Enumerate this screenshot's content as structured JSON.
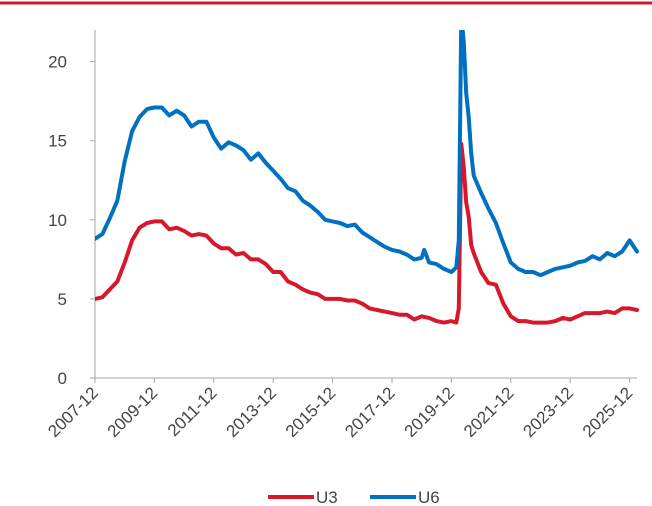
{
  "colors": {
    "top_rule": "#d7182a",
    "axis": "#a6a6a6",
    "text": "#444444"
  },
  "chart_data": {
    "type": "line",
    "title": "",
    "xlabel": "",
    "ylabel": "",
    "x_range": [
      "2007-12",
      "2026-03"
    ],
    "ylim": [
      0,
      22
    ],
    "y_ticks": [
      0,
      5,
      10,
      15,
      20
    ],
    "x_ticks": [
      "2007-12",
      "2009-12",
      "2011-12",
      "2013-12",
      "2015-12",
      "2017-12",
      "2019-12",
      "2021-12",
      "2023-12",
      "2025-12"
    ],
    "grid": false,
    "legend": "bottom",
    "series": [
      {
        "name": "U3",
        "color": "#d7182a",
        "points": [
          [
            "2007-12",
            5.0
          ],
          [
            "2008-03",
            5.1
          ],
          [
            "2008-06",
            5.6
          ],
          [
            "2008-09",
            6.1
          ],
          [
            "2008-12",
            7.3
          ],
          [
            "2009-03",
            8.7
          ],
          [
            "2009-06",
            9.5
          ],
          [
            "2009-09",
            9.8
          ],
          [
            "2009-12",
            9.9
          ],
          [
            "2010-03",
            9.9
          ],
          [
            "2010-06",
            9.4
          ],
          [
            "2010-09",
            9.5
          ],
          [
            "2010-12",
            9.3
          ],
          [
            "2011-03",
            9.0
          ],
          [
            "2011-06",
            9.1
          ],
          [
            "2011-09",
            9.0
          ],
          [
            "2011-12",
            8.5
          ],
          [
            "2012-03",
            8.2
          ],
          [
            "2012-06",
            8.2
          ],
          [
            "2012-09",
            7.8
          ],
          [
            "2012-12",
            7.9
          ],
          [
            "2013-03",
            7.5
          ],
          [
            "2013-06",
            7.5
          ],
          [
            "2013-09",
            7.2
          ],
          [
            "2013-12",
            6.7
          ],
          [
            "2014-03",
            6.7
          ],
          [
            "2014-06",
            6.1
          ],
          [
            "2014-09",
            5.9
          ],
          [
            "2014-12",
            5.6
          ],
          [
            "2015-03",
            5.4
          ],
          [
            "2015-06",
            5.3
          ],
          [
            "2015-09",
            5.0
          ],
          [
            "2015-12",
            5.0
          ],
          [
            "2016-03",
            5.0
          ],
          [
            "2016-06",
            4.9
          ],
          [
            "2016-09",
            4.9
          ],
          [
            "2016-12",
            4.7
          ],
          [
            "2017-03",
            4.4
          ],
          [
            "2017-06",
            4.3
          ],
          [
            "2017-09",
            4.2
          ],
          [
            "2017-12",
            4.1
          ],
          [
            "2018-03",
            4.0
          ],
          [
            "2018-06",
            4.0
          ],
          [
            "2018-09",
            3.7
          ],
          [
            "2018-12",
            3.9
          ],
          [
            "2019-03",
            3.8
          ],
          [
            "2019-06",
            3.6
          ],
          [
            "2019-09",
            3.5
          ],
          [
            "2019-12",
            3.6
          ],
          [
            "2020-02",
            3.5
          ],
          [
            "2020-03",
            4.4
          ],
          [
            "2020-04",
            14.8
          ],
          [
            "2020-05",
            13.3
          ],
          [
            "2020-06",
            11.1
          ],
          [
            "2020-07",
            10.2
          ],
          [
            "2020-08",
            8.4
          ],
          [
            "2020-09",
            7.9
          ],
          [
            "2020-12",
            6.7
          ],
          [
            "2021-03",
            6.0
          ],
          [
            "2021-06",
            5.9
          ],
          [
            "2021-09",
            4.7
          ],
          [
            "2021-12",
            3.9
          ],
          [
            "2022-03",
            3.6
          ],
          [
            "2022-06",
            3.6
          ],
          [
            "2022-09",
            3.5
          ],
          [
            "2022-12",
            3.5
          ],
          [
            "2023-03",
            3.5
          ],
          [
            "2023-06",
            3.6
          ],
          [
            "2023-09",
            3.8
          ],
          [
            "2023-12",
            3.7
          ],
          [
            "2024-03",
            3.9
          ],
          [
            "2024-06",
            4.1
          ],
          [
            "2024-09",
            4.1
          ],
          [
            "2024-12",
            4.1
          ],
          [
            "2025-03",
            4.2
          ],
          [
            "2025-06",
            4.1
          ],
          [
            "2025-09",
            4.4
          ],
          [
            "2025-12",
            4.4
          ],
          [
            "2026-03",
            4.3
          ]
        ]
      },
      {
        "name": "U6",
        "color": "#0070c0",
        "points": [
          [
            "2007-12",
            8.8
          ],
          [
            "2008-03",
            9.1
          ],
          [
            "2008-06",
            10.1
          ],
          [
            "2008-09",
            11.2
          ],
          [
            "2008-12",
            13.7
          ],
          [
            "2009-03",
            15.6
          ],
          [
            "2009-06",
            16.5
          ],
          [
            "2009-09",
            17.0
          ],
          [
            "2009-12",
            17.1
          ],
          [
            "2010-03",
            17.1
          ],
          [
            "2010-06",
            16.6
          ],
          [
            "2010-09",
            16.9
          ],
          [
            "2010-12",
            16.6
          ],
          [
            "2011-03",
            15.9
          ],
          [
            "2011-06",
            16.2
          ],
          [
            "2011-09",
            16.2
          ],
          [
            "2011-12",
            15.2
          ],
          [
            "2012-03",
            14.5
          ],
          [
            "2012-06",
            14.9
          ],
          [
            "2012-09",
            14.7
          ],
          [
            "2012-12",
            14.4
          ],
          [
            "2013-03",
            13.8
          ],
          [
            "2013-06",
            14.2
          ],
          [
            "2013-09",
            13.6
          ],
          [
            "2013-12",
            13.1
          ],
          [
            "2014-03",
            12.6
          ],
          [
            "2014-06",
            12.0
          ],
          [
            "2014-09",
            11.8
          ],
          [
            "2014-12",
            11.2
          ],
          [
            "2015-03",
            10.9
          ],
          [
            "2015-06",
            10.5
          ],
          [
            "2015-09",
            10.0
          ],
          [
            "2015-12",
            9.9
          ],
          [
            "2016-03",
            9.8
          ],
          [
            "2016-06",
            9.6
          ],
          [
            "2016-09",
            9.7
          ],
          [
            "2016-12",
            9.2
          ],
          [
            "2017-03",
            8.9
          ],
          [
            "2017-06",
            8.6
          ],
          [
            "2017-09",
            8.3
          ],
          [
            "2017-12",
            8.1
          ],
          [
            "2018-03",
            8.0
          ],
          [
            "2018-06",
            7.8
          ],
          [
            "2018-09",
            7.5
          ],
          [
            "2018-12",
            7.6
          ],
          [
            "2019-01",
            8.1
          ],
          [
            "2019-03",
            7.3
          ],
          [
            "2019-06",
            7.2
          ],
          [
            "2019-09",
            6.9
          ],
          [
            "2019-12",
            6.7
          ],
          [
            "2020-02",
            7.0
          ],
          [
            "2020-03",
            8.7
          ],
          [
            "2020-04",
            22.9
          ],
          [
            "2020-05",
            21.2
          ],
          [
            "2020-06",
            18.0
          ],
          [
            "2020-07",
            16.5
          ],
          [
            "2020-08",
            14.2
          ],
          [
            "2020-09",
            12.8
          ],
          [
            "2020-12",
            11.7
          ],
          [
            "2021-03",
            10.7
          ],
          [
            "2021-06",
            9.8
          ],
          [
            "2021-09",
            8.5
          ],
          [
            "2021-12",
            7.3
          ],
          [
            "2022-03",
            6.9
          ],
          [
            "2022-06",
            6.7
          ],
          [
            "2022-09",
            6.7
          ],
          [
            "2022-12",
            6.5
          ],
          [
            "2023-03",
            6.7
          ],
          [
            "2023-06",
            6.9
          ],
          [
            "2023-09",
            7.0
          ],
          [
            "2023-12",
            7.1
          ],
          [
            "2024-03",
            7.3
          ],
          [
            "2024-06",
            7.4
          ],
          [
            "2024-09",
            7.7
          ],
          [
            "2024-12",
            7.5
          ],
          [
            "2025-03",
            7.9
          ],
          [
            "2025-06",
            7.7
          ],
          [
            "2025-09",
            8.0
          ],
          [
            "2025-12",
            8.7
          ],
          [
            "2026-03",
            8.0
          ]
        ]
      }
    ]
  }
}
